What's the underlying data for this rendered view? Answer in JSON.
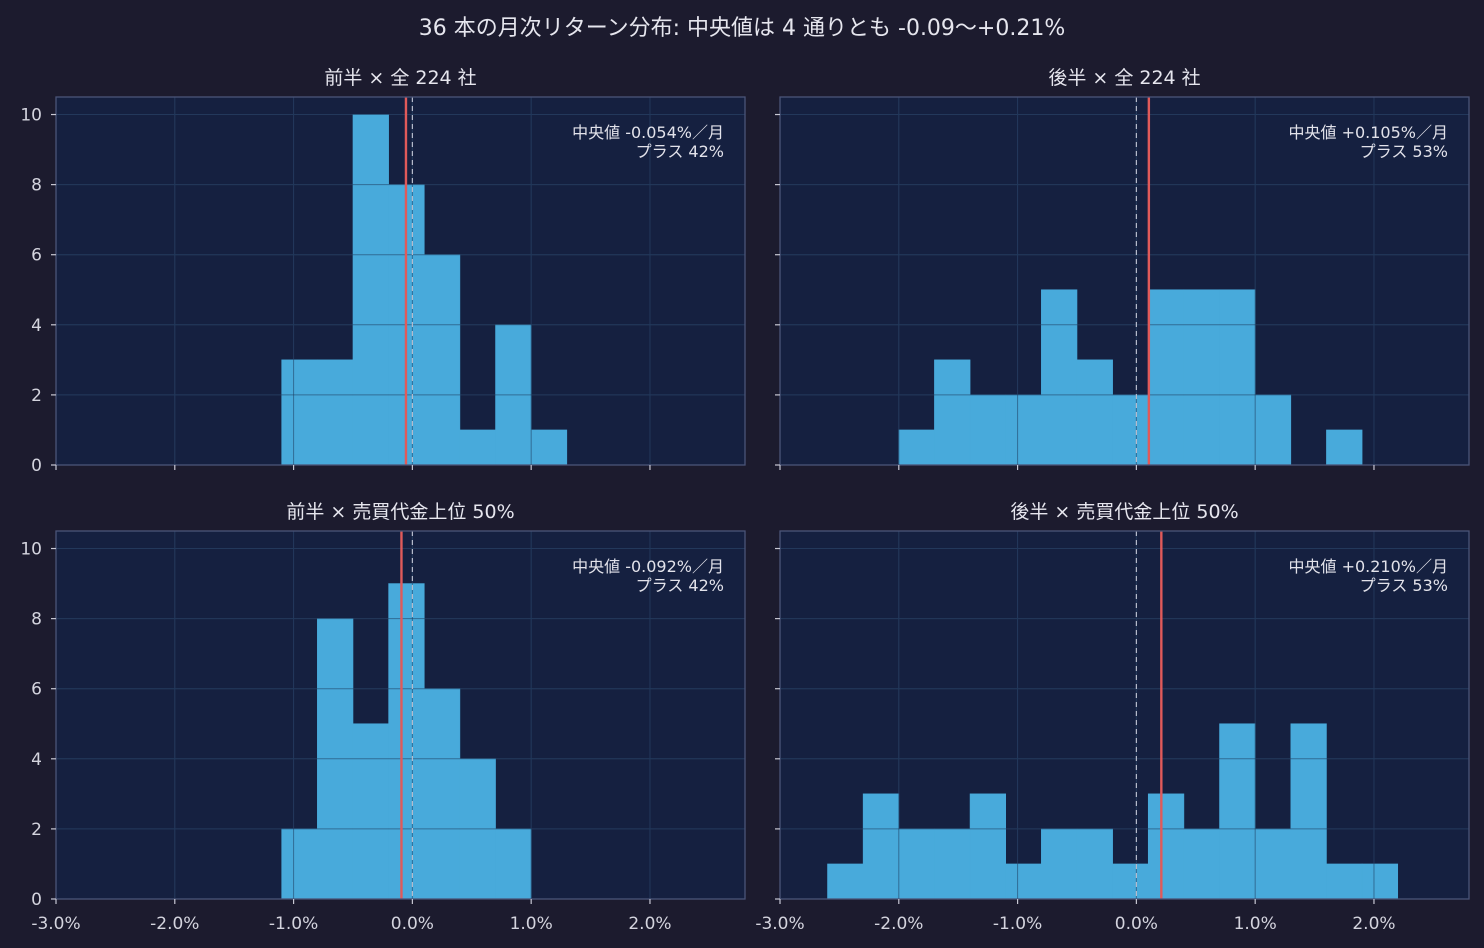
{
  "suptitle": "36 本の月次リターン分布: 中央値は 4 通りとも -0.09〜+0.21%",
  "colors": {
    "figure_bg": "#1c1b2e",
    "axes_bg": "#152040",
    "bar": "#48aadb",
    "median_line": "#e05a5a",
    "zero_line": "#b8bccc",
    "grid": "#2a3659",
    "spine": "#4a5478"
  },
  "chart_data": [
    {
      "type": "bar",
      "title": "前半 × 全 224 社",
      "xlim": [
        -3.0,
        2.8
      ],
      "ylim": [
        0,
        10.5
      ],
      "grid": true,
      "x_ticks": [
        -3,
        -2,
        -1,
        0,
        1,
        2
      ],
      "x_tick_labels": [
        "-3.0%",
        "-2.0%",
        "-1.0%",
        "0.0%",
        "1.0%",
        "2.0%"
      ],
      "y_ticks": [
        0,
        2,
        4,
        6,
        8,
        10
      ],
      "show_xtick_labels": false,
      "bin_width": 0.3,
      "bins": [
        {
          "x0": -1.1,
          "x1": -0.8,
          "count": 3
        },
        {
          "x0": -0.8,
          "x1": -0.5,
          "count": 3
        },
        {
          "x0": -0.5,
          "x1": -0.2,
          "count": 10
        },
        {
          "x0": -0.2,
          "x1": 0.1,
          "count": 8
        },
        {
          "x0": 0.1,
          "x1": 0.4,
          "count": 6
        },
        {
          "x0": 0.4,
          "x1": 0.7,
          "count": 1
        },
        {
          "x0": 0.7,
          "x1": 1.0,
          "count": 4
        },
        {
          "x0": 1.0,
          "x1": 1.3,
          "count": 1
        }
      ],
      "median": -0.054,
      "annotation": {
        "line1": "中央値 -0.054%／月",
        "line2": "プラス 42%"
      }
    },
    {
      "type": "bar",
      "title": "後半 × 全 224 社",
      "xlim": [
        -3.0,
        2.8
      ],
      "ylim": [
        0,
        10.5
      ],
      "grid": true,
      "x_ticks": [
        -3,
        -2,
        -1,
        0,
        1,
        2
      ],
      "x_tick_labels": [
        "-3.0%",
        "-2.0%",
        "-1.0%",
        "0.0%",
        "1.0%",
        "2.0%"
      ],
      "y_ticks": [
        0,
        2,
        4,
        6,
        8,
        10
      ],
      "show_xtick_labels": false,
      "bin_width": 0.3,
      "bins": [
        {
          "x0": -2.0,
          "x1": -1.7,
          "count": 1
        },
        {
          "x0": -1.7,
          "x1": -1.4,
          "count": 3
        },
        {
          "x0": -1.4,
          "x1": -1.1,
          "count": 2
        },
        {
          "x0": -1.1,
          "x1": -0.8,
          "count": 2
        },
        {
          "x0": -0.8,
          "x1": -0.5,
          "count": 5
        },
        {
          "x0": -0.5,
          "x1": -0.2,
          "count": 3
        },
        {
          "x0": -0.2,
          "x1": 0.1,
          "count": 2
        },
        {
          "x0": 0.1,
          "x1": 0.4,
          "count": 5
        },
        {
          "x0": 0.4,
          "x1": 0.7,
          "count": 5
        },
        {
          "x0": 0.7,
          "x1": 1.0,
          "count": 5
        },
        {
          "x0": 1.0,
          "x1": 1.3,
          "count": 2
        },
        {
          "x0": 1.3,
          "x1": 1.6,
          "count": 0
        },
        {
          "x0": 1.6,
          "x1": 1.9,
          "count": 1
        }
      ],
      "median": 0.105,
      "annotation": {
        "line1": "中央値 +0.105%／月",
        "line2": "プラス 53%"
      }
    },
    {
      "type": "bar",
      "title": "前半 × 売買代金上位 50%",
      "xlim": [
        -3.0,
        2.8
      ],
      "ylim": [
        0,
        10.5
      ],
      "grid": true,
      "x_ticks": [
        -3,
        -2,
        -1,
        0,
        1,
        2
      ],
      "x_tick_labels": [
        "-3.0%",
        "-2.0%",
        "-1.0%",
        "0.0%",
        "1.0%",
        "2.0%"
      ],
      "y_ticks": [
        0,
        2,
        4,
        6,
        8,
        10
      ],
      "show_xtick_labels": true,
      "bin_width": 0.3,
      "bins": [
        {
          "x0": -1.1,
          "x1": -0.8,
          "count": 2
        },
        {
          "x0": -0.8,
          "x1": -0.5,
          "count": 8
        },
        {
          "x0": -0.5,
          "x1": -0.2,
          "count": 5
        },
        {
          "x0": -0.2,
          "x1": 0.1,
          "count": 9
        },
        {
          "x0": 0.1,
          "x1": 0.4,
          "count": 6
        },
        {
          "x0": 0.4,
          "x1": 0.7,
          "count": 4
        },
        {
          "x0": 0.7,
          "x1": 1.0,
          "count": 2
        }
      ],
      "median": -0.092,
      "annotation": {
        "line1": "中央値 -0.092%／月",
        "line2": "プラス 42%"
      }
    },
    {
      "type": "bar",
      "title": "後半 × 売買代金上位 50%",
      "xlim": [
        -3.0,
        2.8
      ],
      "ylim": [
        0,
        10.5
      ],
      "grid": true,
      "x_ticks": [
        -3,
        -2,
        -1,
        0,
        1,
        2
      ],
      "x_tick_labels": [
        "-3.0%",
        "-2.0%",
        "-1.0%",
        "0.0%",
        "1.0%",
        "2.0%"
      ],
      "y_ticks": [
        0,
        2,
        4,
        6,
        8,
        10
      ],
      "show_xtick_labels": true,
      "bin_width": 0.3,
      "bins": [
        {
          "x0": -2.6,
          "x1": -2.3,
          "count": 1
        },
        {
          "x0": -2.3,
          "x1": -2.0,
          "count": 3
        },
        {
          "x0": -2.0,
          "x1": -1.7,
          "count": 2
        },
        {
          "x0": -1.7,
          "x1": -1.4,
          "count": 2
        },
        {
          "x0": -1.4,
          "x1": -1.1,
          "count": 3
        },
        {
          "x0": -1.1,
          "x1": -0.8,
          "count": 1
        },
        {
          "x0": -0.8,
          "x1": -0.5,
          "count": 2
        },
        {
          "x0": -0.5,
          "x1": -0.2,
          "count": 2
        },
        {
          "x0": -0.2,
          "x1": 0.1,
          "count": 1
        },
        {
          "x0": 0.1,
          "x1": 0.4,
          "count": 3
        },
        {
          "x0": 0.4,
          "x1": 0.7,
          "count": 2
        },
        {
          "x0": 0.7,
          "x1": 1.0,
          "count": 5
        },
        {
          "x0": 1.0,
          "x1": 1.3,
          "count": 2
        },
        {
          "x0": 1.3,
          "x1": 1.6,
          "count": 5
        },
        {
          "x0": 1.6,
          "x1": 1.9,
          "count": 1
        },
        {
          "x0": 1.9,
          "x1": 2.2,
          "count": 1
        }
      ],
      "median": 0.21,
      "annotation": {
        "line1": "中央値 +0.210%／月",
        "line2": "プラス 53%"
      }
    }
  ]
}
